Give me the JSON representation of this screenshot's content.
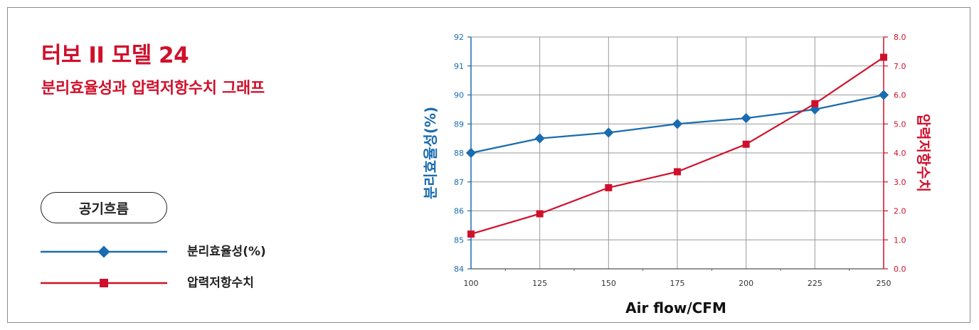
{
  "header": {
    "title": "터보 II 모델 24",
    "subtitle": "분리효율성과 압력저항수치 그래프"
  },
  "legend": {
    "pill_label": "공기흐름",
    "items": [
      {
        "label": "분리효율성(%)",
        "color": "#1a6cb0",
        "marker": "diamond"
      },
      {
        "label": "압력저항수치",
        "color": "#d0102b",
        "marker": "square"
      }
    ]
  },
  "colors": {
    "accent_red": "#d0102b",
    "accent_blue": "#1a6cb0",
    "grid": "#999999"
  },
  "chart_data": {
    "type": "line",
    "xlabel": "Air flow/CFM",
    "ylabel_left": "분리효율성(%)",
    "ylabel_right": "압력저항수치",
    "x": [
      100,
      125,
      150,
      175,
      200,
      225,
      250
    ],
    "x_ticks": [
      "100",
      "125",
      "150",
      "175",
      "200",
      "225",
      "250"
    ],
    "ylim_left": [
      84,
      92
    ],
    "y_ticks_left": [
      "84",
      "85",
      "86",
      "87",
      "88",
      "89",
      "90",
      "91",
      "92"
    ],
    "ylim_right": [
      0,
      8
    ],
    "y_ticks_right": [
      "0.0",
      "1.0",
      "2.0",
      "3.0",
      "4.0",
      "5.0",
      "6.0",
      "7.0",
      "8.0"
    ],
    "grid": true,
    "series": [
      {
        "name": "분리효율성(%)",
        "axis": "left",
        "color": "#1a6cb0",
        "marker": "diamond",
        "values": [
          88.0,
          88.5,
          88.7,
          89.0,
          89.2,
          89.5,
          90.0
        ]
      },
      {
        "name": "압력저항수치",
        "axis": "right",
        "color": "#d0102b",
        "marker": "square",
        "values": [
          1.2,
          1.9,
          2.8,
          3.35,
          4.3,
          5.7,
          7.3
        ]
      }
    ]
  }
}
